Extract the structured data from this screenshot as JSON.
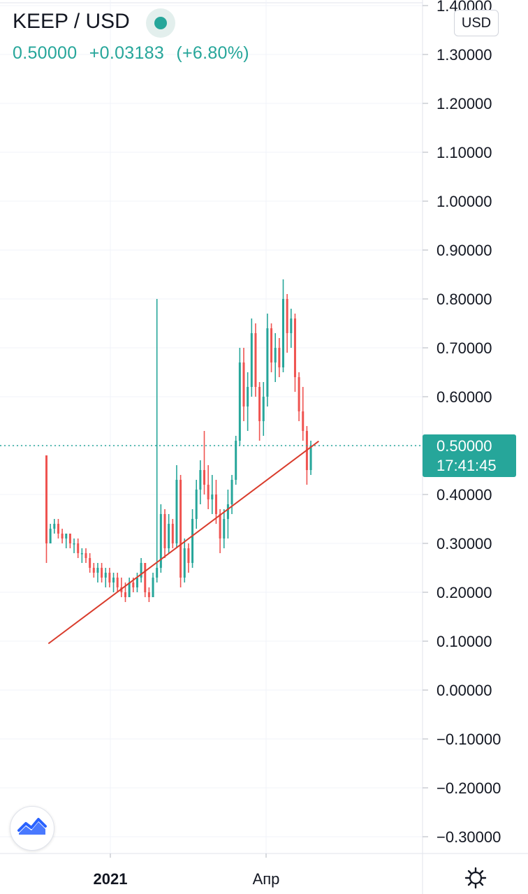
{
  "header": {
    "pair": "KEEP / USD",
    "status_color": "#26a69a",
    "price": "0.50000",
    "change": "+0.03183",
    "change_pct": "(+6.80%)"
  },
  "currency_button": "USD",
  "price_badge": {
    "price": "0.50000",
    "countdown": "17:41:45"
  },
  "colors": {
    "up": "#26a69a",
    "down": "#ef5350",
    "trendline": "#d93c2c",
    "grid": "#f0f3fa"
  },
  "logo_icon": "tradingview-logo-icon",
  "settings_icon": "gear-icon",
  "chart_data": {
    "type": "candlestick",
    "symbol": "KEEP / USD",
    "y_ticks": [
      "1.40000",
      "1.30000",
      "1.20000",
      "1.10000",
      "1.00000",
      "0.90000",
      "0.80000",
      "0.70000",
      "0.60000",
      "0.50000",
      "0.40000",
      "0.30000",
      "0.20000",
      "0.10000",
      "0.00000",
      "−0.10000",
      "−0.20000",
      "−0.30000"
    ],
    "x_ticks": [
      "2021",
      "Апр"
    ],
    "ylim": [
      -0.33,
      1.42
    ],
    "grid": true,
    "last_price": 0.5,
    "candles": [
      [
        0.48,
        0.48,
        0.26,
        0.3
      ],
      [
        0.3,
        0.34,
        0.3,
        0.33
      ],
      [
        0.33,
        0.35,
        0.32,
        0.34
      ],
      [
        0.34,
        0.35,
        0.31,
        0.32
      ],
      [
        0.32,
        0.33,
        0.3,
        0.31
      ],
      [
        0.31,
        0.32,
        0.29,
        0.32
      ],
      [
        0.32,
        0.32,
        0.29,
        0.3
      ],
      [
        0.3,
        0.31,
        0.28,
        0.3
      ],
      [
        0.3,
        0.31,
        0.27,
        0.28
      ],
      [
        0.28,
        0.29,
        0.26,
        0.28
      ],
      [
        0.28,
        0.29,
        0.26,
        0.27
      ],
      [
        0.27,
        0.28,
        0.24,
        0.25
      ],
      [
        0.25,
        0.26,
        0.23,
        0.24
      ],
      [
        0.24,
        0.26,
        0.22,
        0.25
      ],
      [
        0.25,
        0.26,
        0.22,
        0.23
      ],
      [
        0.23,
        0.25,
        0.21,
        0.24
      ],
      [
        0.24,
        0.25,
        0.21,
        0.22
      ],
      [
        0.22,
        0.24,
        0.2,
        0.23
      ],
      [
        0.23,
        0.24,
        0.2,
        0.21
      ],
      [
        0.21,
        0.23,
        0.19,
        0.2
      ],
      [
        0.2,
        0.22,
        0.18,
        0.19
      ],
      [
        0.19,
        0.23,
        0.19,
        0.22
      ],
      [
        0.22,
        0.23,
        0.2,
        0.21
      ],
      [
        0.21,
        0.24,
        0.2,
        0.23
      ],
      [
        0.23,
        0.27,
        0.22,
        0.26
      ],
      [
        0.26,
        0.26,
        0.19,
        0.2
      ],
      [
        0.2,
        0.21,
        0.18,
        0.19
      ],
      [
        0.19,
        0.24,
        0.19,
        0.23
      ],
      [
        0.23,
        0.8,
        0.22,
        0.25
      ],
      [
        0.25,
        0.38,
        0.24,
        0.36
      ],
      [
        0.36,
        0.37,
        0.27,
        0.29
      ],
      [
        0.29,
        0.36,
        0.28,
        0.34
      ],
      [
        0.34,
        0.35,
        0.29,
        0.3
      ],
      [
        0.3,
        0.46,
        0.29,
        0.43
      ],
      [
        0.43,
        0.44,
        0.21,
        0.23
      ],
      [
        0.23,
        0.31,
        0.22,
        0.29
      ],
      [
        0.29,
        0.3,
        0.24,
        0.26
      ],
      [
        0.26,
        0.37,
        0.25,
        0.35
      ],
      [
        0.35,
        0.43,
        0.33,
        0.41
      ],
      [
        0.41,
        0.47,
        0.38,
        0.45
      ],
      [
        0.45,
        0.53,
        0.4,
        0.42
      ],
      [
        0.42,
        0.46,
        0.37,
        0.39
      ],
      [
        0.39,
        0.44,
        0.36,
        0.4
      ],
      [
        0.4,
        0.43,
        0.34,
        0.36
      ],
      [
        0.36,
        0.37,
        0.28,
        0.31
      ],
      [
        0.31,
        0.37,
        0.29,
        0.35
      ],
      [
        0.35,
        0.41,
        0.31,
        0.38
      ],
      [
        0.38,
        0.44,
        0.36,
        0.43
      ],
      [
        0.43,
        0.52,
        0.42,
        0.51
      ],
      [
        0.51,
        0.7,
        0.5,
        0.67
      ],
      [
        0.67,
        0.7,
        0.55,
        0.58
      ],
      [
        0.58,
        0.65,
        0.53,
        0.62
      ],
      [
        0.62,
        0.76,
        0.6,
        0.73
      ],
      [
        0.73,
        0.75,
        0.6,
        0.62
      ],
      [
        0.62,
        0.63,
        0.51,
        0.55
      ],
      [
        0.55,
        0.63,
        0.52,
        0.6
      ],
      [
        0.6,
        0.77,
        0.58,
        0.74
      ],
      [
        0.74,
        0.75,
        0.65,
        0.67
      ],
      [
        0.67,
        0.73,
        0.63,
        0.7
      ],
      [
        0.7,
        0.72,
        0.64,
        0.66
      ],
      [
        0.66,
        0.84,
        0.65,
        0.8
      ],
      [
        0.8,
        0.81,
        0.69,
        0.73
      ],
      [
        0.73,
        0.78,
        0.7,
        0.76
      ],
      [
        0.76,
        0.77,
        0.61,
        0.64
      ],
      [
        0.64,
        0.65,
        0.55,
        0.57
      ],
      [
        0.57,
        0.62,
        0.51,
        0.53
      ],
      [
        0.53,
        0.54,
        0.42,
        0.45
      ],
      [
        0.45,
        0.51,
        0.44,
        0.5
      ]
    ],
    "trendline": {
      "from": [
        0.5,
        0.095
      ],
      "to": [
        69,
        0.509
      ]
    }
  }
}
